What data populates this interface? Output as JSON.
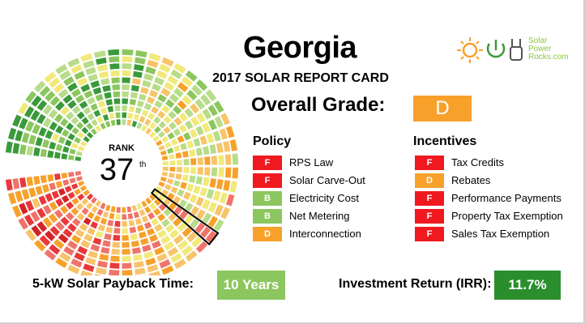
{
  "header": {
    "state": "Georgia",
    "subtitle": "2017 SOLAR REPORT CARD",
    "logo_text": [
      "Solar",
      "Power",
      "Rocks.com"
    ]
  },
  "rank": {
    "label": "RANK",
    "value": "37",
    "suffix": "th"
  },
  "overall": {
    "label": "Overall Grade:",
    "grade": "D",
    "color": "#f7a12b"
  },
  "policy": {
    "title": "Policy",
    "items": [
      {
        "grade": "F",
        "label": "RPS Law",
        "color": "#f0191f"
      },
      {
        "grade": "F",
        "label": "Solar Carve-Out",
        "color": "#f0191f"
      },
      {
        "grade": "B",
        "label": "Electricity Cost",
        "color": "#8cc65e"
      },
      {
        "grade": "B",
        "label": "Net Metering",
        "color": "#8cc65e"
      },
      {
        "grade": "D",
        "label": "Interconnection",
        "color": "#f7a12b"
      }
    ]
  },
  "incentives": {
    "title": "Incentives",
    "items": [
      {
        "grade": "F",
        "label": "Tax Credits",
        "color": "#f0191f"
      },
      {
        "grade": "D",
        "label": "Rebates",
        "color": "#f7a12b"
      },
      {
        "grade": "F",
        "label": "Performance Payments",
        "color": "#f0191f"
      },
      {
        "grade": "F",
        "label": "Property Tax Exemption",
        "color": "#f0191f"
      },
      {
        "grade": "F",
        "label": "Sales Tax Exemption",
        "color": "#f0191f"
      }
    ]
  },
  "payback": {
    "label": "5-kW Solar Payback Time:",
    "value": "10 Years",
    "color": "#8cc65e"
  },
  "irr": {
    "label": "Investment Return (IRR):",
    "value": "11.7%",
    "color": "#2a8e2d"
  },
  "colors": {
    "dial_palette": [
      "#3a9a3a",
      "#8cc65e",
      "#b8dc8a",
      "#f1e97a",
      "#f7c46b",
      "#f7a12b",
      "#f0736a",
      "#e8383a",
      "#d42426"
    ],
    "highlight_outline": "#000000"
  }
}
